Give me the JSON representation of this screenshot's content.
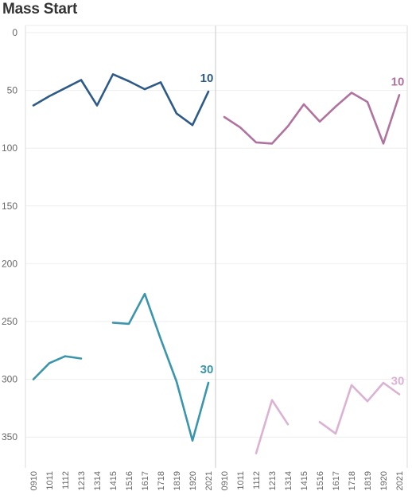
{
  "title": "Mass Start",
  "chart_data": {
    "type": "line",
    "title": "Mass Start",
    "y_reversed": true,
    "ylim": [
      0,
      380
    ],
    "y_ticks": [
      0,
      50,
      100,
      150,
      200,
      250,
      300,
      350
    ],
    "categories": [
      "0910",
      "1011",
      "1112",
      "1213",
      "1314",
      "1415",
      "1516",
      "1617",
      "1718",
      "1819",
      "1920",
      "2021"
    ],
    "panels": [
      {
        "series": [
          {
            "label": "10",
            "color": "#2e5a87",
            "values": [
              63,
              55,
              48,
              41,
              63,
              36,
              42,
              49,
              43,
              70,
              80,
              51
            ]
          },
          {
            "label": "30",
            "color": "#3a95ad",
            "values": [
              300,
              286,
              280,
              282,
              null,
              251,
              252,
              226,
              265,
              302,
              353,
              303
            ]
          }
        ]
      },
      {
        "series": [
          {
            "label": "10",
            "color": "#b0739f",
            "values": [
              73,
              82,
              95,
              96,
              81,
              62,
              77,
              64,
              52,
              60,
              96,
              54
            ]
          },
          {
            "label": "30",
            "color": "#dcb2d4",
            "values": [
              null,
              null,
              364,
              318,
              339,
              null,
              337,
              347,
              305,
              319,
              303,
              313
            ]
          }
        ]
      }
    ]
  }
}
